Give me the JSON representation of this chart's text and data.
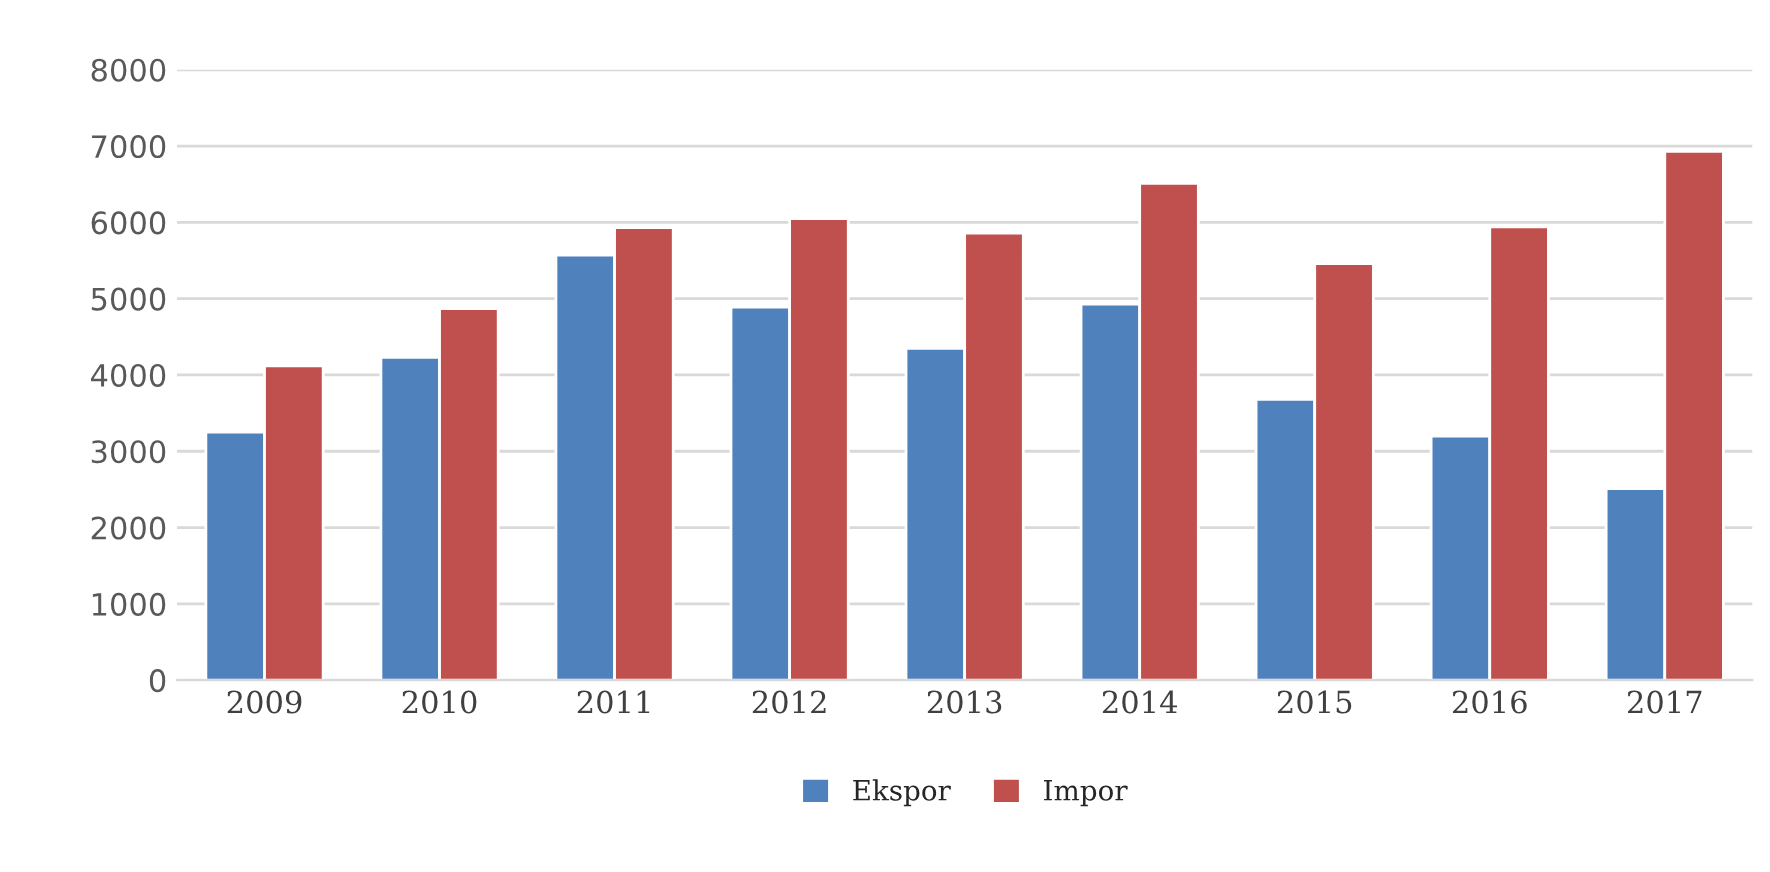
{
  "chart_data": {
    "type": "bar",
    "categories": [
      "2009",
      "2010",
      "2011",
      "2012",
      "2013",
      "2014",
      "2015",
      "2016",
      "2017"
    ],
    "series": [
      {
        "name": "Ekspor",
        "color": "#4f81bd",
        "values": [
          3250,
          4230,
          5570,
          4890,
          4350,
          4930,
          3680,
          3200,
          2510
        ]
      },
      {
        "name": "Impor",
        "color": "#c0504d",
        "values": [
          4120,
          4870,
          5930,
          6050,
          5860,
          6510,
          5460,
          5940,
          6930
        ]
      }
    ],
    "ylim": [
      0,
      8000
    ],
    "yticks": [
      0,
      1000,
      2000,
      3000,
      4000,
      5000,
      6000,
      7000,
      8000
    ],
    "grid": "y",
    "legend": "bottom"
  }
}
